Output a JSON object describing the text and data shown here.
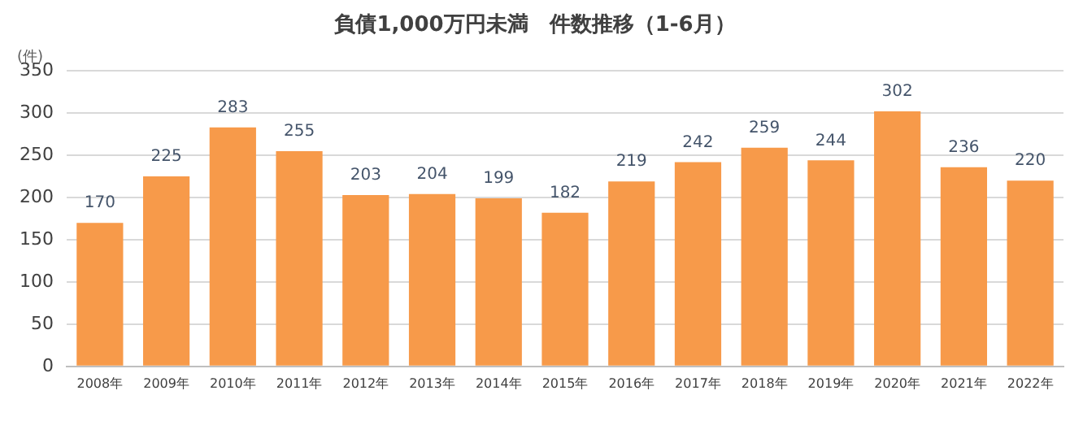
{
  "chart_data": {
    "type": "bar",
    "title": "負債1,000万円未満　件数推移（1-6月）",
    "ylabel": "(件)",
    "categories": [
      "2008年",
      "2009年",
      "2010年",
      "2011年",
      "2012年",
      "2013年",
      "2014年",
      "2015年",
      "2016年",
      "2017年",
      "2018年",
      "2019年",
      "2020年",
      "2021年",
      "2022年"
    ],
    "values": [
      170,
      225,
      283,
      255,
      203,
      204,
      199,
      182,
      219,
      242,
      259,
      244,
      302,
      236,
      220
    ],
    "color": "#f79a4a",
    "ylim": [
      0,
      350
    ],
    "yticks": [
      0,
      50,
      100,
      150,
      200,
      250,
      300,
      350
    ],
    "grid": "y",
    "data_labels": true
  }
}
